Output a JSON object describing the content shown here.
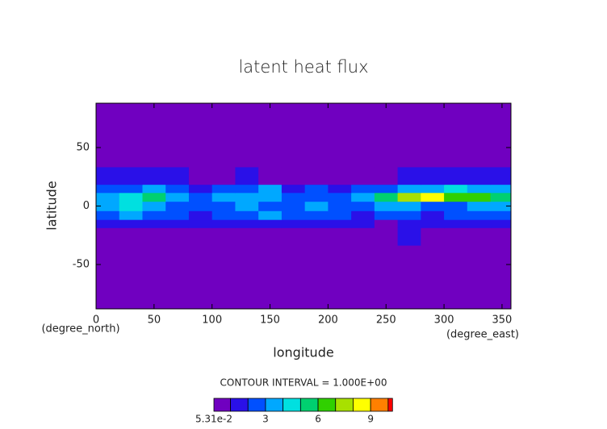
{
  "chart_data": {
    "type": "contour",
    "title": "latent heat flux",
    "x_label": "longitude",
    "y_label": "latitude",
    "x_units": "(degree_east)",
    "y_units": "(degree_north)",
    "contour_note": "CONTOUR INTERVAL = 1.000E+00",
    "xlim": [
      0,
      357.7
    ],
    "ylim": [
      -87.9,
      87.9
    ],
    "xticks": [
      0,
      50,
      100,
      150,
      200,
      250,
      300,
      350
    ],
    "yticks": [
      -50,
      0,
      50
    ],
    "x": [
      10,
      30,
      50,
      70,
      90,
      110,
      130,
      150,
      170,
      190,
      210,
      230,
      250,
      270,
      290,
      310,
      330,
      350
    ],
    "y": [
      -75,
      -45,
      -22,
      -15,
      -8,
      0,
      8,
      15,
      22,
      45,
      75
    ],
    "z": [
      [
        0.5,
        0.5,
        0.5,
        0.5,
        0.5,
        0.5,
        0.5,
        0.5,
        0.5,
        0.5,
        0.5,
        0.5,
        0.5,
        0.5,
        0.5,
        0.5,
        0.5,
        0.5
      ],
      [
        0.5,
        0.5,
        0.5,
        0.5,
        0.5,
        0.5,
        0.5,
        0.5,
        0.5,
        0.5,
        0.5,
        0.5,
        0.5,
        0.5,
        0.5,
        0.5,
        0.5,
        0.5
      ],
      [
        0.5,
        0.5,
        0.5,
        0.5,
        0.5,
        0.5,
        0.5,
        0.5,
        0.5,
        0.5,
        0.5,
        0.5,
        0.5,
        1.5,
        0.5,
        0.5,
        0.5,
        0.5
      ],
      [
        1.5,
        1.5,
        1.5,
        1.5,
        1.5,
        1.5,
        1.5,
        1.5,
        1.5,
        1.5,
        1.5,
        1.5,
        0.5,
        1.5,
        1.5,
        1.5,
        1.5,
        1.5
      ],
      [
        2.5,
        3.5,
        2.5,
        2.5,
        1.5,
        2.5,
        2.5,
        3.5,
        2.5,
        2.5,
        2.5,
        1.5,
        2.5,
        2.5,
        1.5,
        2.5,
        2.5,
        2.5
      ],
      [
        3.5,
        4.5,
        3.5,
        2.5,
        2.5,
        2.5,
        3.5,
        2.5,
        2.5,
        3.5,
        2.5,
        2.5,
        3.5,
        3.5,
        2.5,
        2.5,
        3.5,
        3.5
      ],
      [
        3.5,
        4.5,
        5.5,
        3.5,
        2.5,
        3.5,
        3.5,
        3.5,
        2.5,
        2.5,
        2.5,
        3.5,
        5.5,
        7.5,
        8.5,
        6.5,
        6.5,
        5.5
      ],
      [
        2.5,
        2.5,
        3.5,
        2.5,
        1.5,
        2.5,
        2.5,
        3.5,
        1.5,
        2.5,
        1.5,
        2.5,
        2.5,
        3.5,
        3.5,
        4.5,
        3.5,
        3.5
      ],
      [
        1.5,
        1.5,
        1.5,
        1.5,
        0.5,
        0.5,
        1.5,
        0.5,
        0.5,
        0.5,
        0.5,
        0.5,
        0.5,
        1.5,
        1.5,
        1.5,
        1.5,
        1.5
      ],
      [
        0.5,
        0.5,
        0.5,
        0.5,
        0.5,
        0.5,
        0.5,
        0.5,
        0.5,
        0.5,
        0.5,
        0.5,
        0.5,
        0.5,
        0.5,
        0.5,
        0.5,
        0.5
      ],
      [
        0.5,
        0.5,
        0.5,
        0.5,
        0.5,
        0.5,
        0.5,
        0.5,
        0.5,
        0.5,
        0.5,
        0.5,
        0.5,
        0.5,
        0.5,
        0.5,
        0.5,
        0.5
      ]
    ],
    "colorbar": {
      "levels": [
        0.0531,
        1,
        2,
        3,
        4,
        5,
        6,
        7,
        8,
        9,
        10
      ],
      "colors": [
        "#7000c0",
        "#2a10e8",
        "#0050ff",
        "#00a8ff",
        "#00e0e0",
        "#00d070",
        "#30d000",
        "#a8e000",
        "#ffff00",
        "#ff8000",
        "#ff0000"
      ],
      "ticks": [
        {
          "value": 0.0531,
          "label": "5.31e-2"
        },
        3,
        6,
        9
      ]
    }
  }
}
